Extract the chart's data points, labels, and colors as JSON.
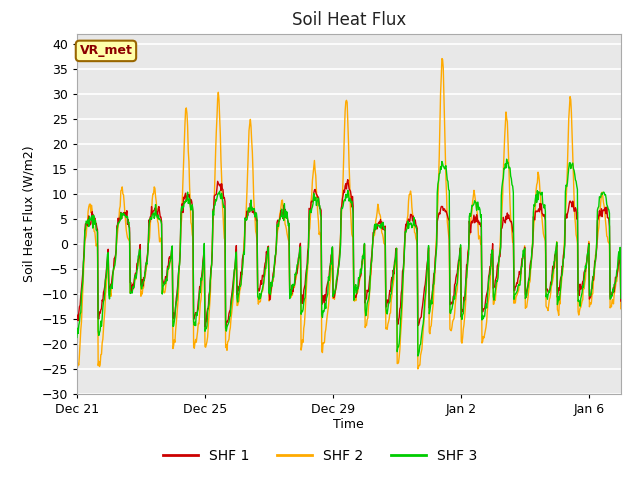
{
  "title": "Soil Heat Flux",
  "xlabel": "Time",
  "ylabel": "Soil Heat Flux (W/m2)",
  "ylim": [
    -30,
    42
  ],
  "yticks": [
    -30,
    -25,
    -20,
    -15,
    -10,
    -5,
    0,
    5,
    10,
    15,
    20,
    25,
    30,
    35,
    40
  ],
  "colors": {
    "SHF 1": "#cc0000",
    "SHF 2": "#ffaa00",
    "SHF 3": "#00cc00"
  },
  "legend_label": "VR_met",
  "fig_bg_color": "#ffffff",
  "plot_bg_color": "#e8e8e8",
  "grid_color": "#ffffff",
  "xtick_labels": [
    "Dec 21",
    "Dec 25",
    "Dec 29",
    "Jan 2",
    "Jan 6"
  ],
  "xtick_positions": [
    0,
    4,
    8,
    12,
    16
  ],
  "linewidth": 1.0,
  "n_days": 17
}
